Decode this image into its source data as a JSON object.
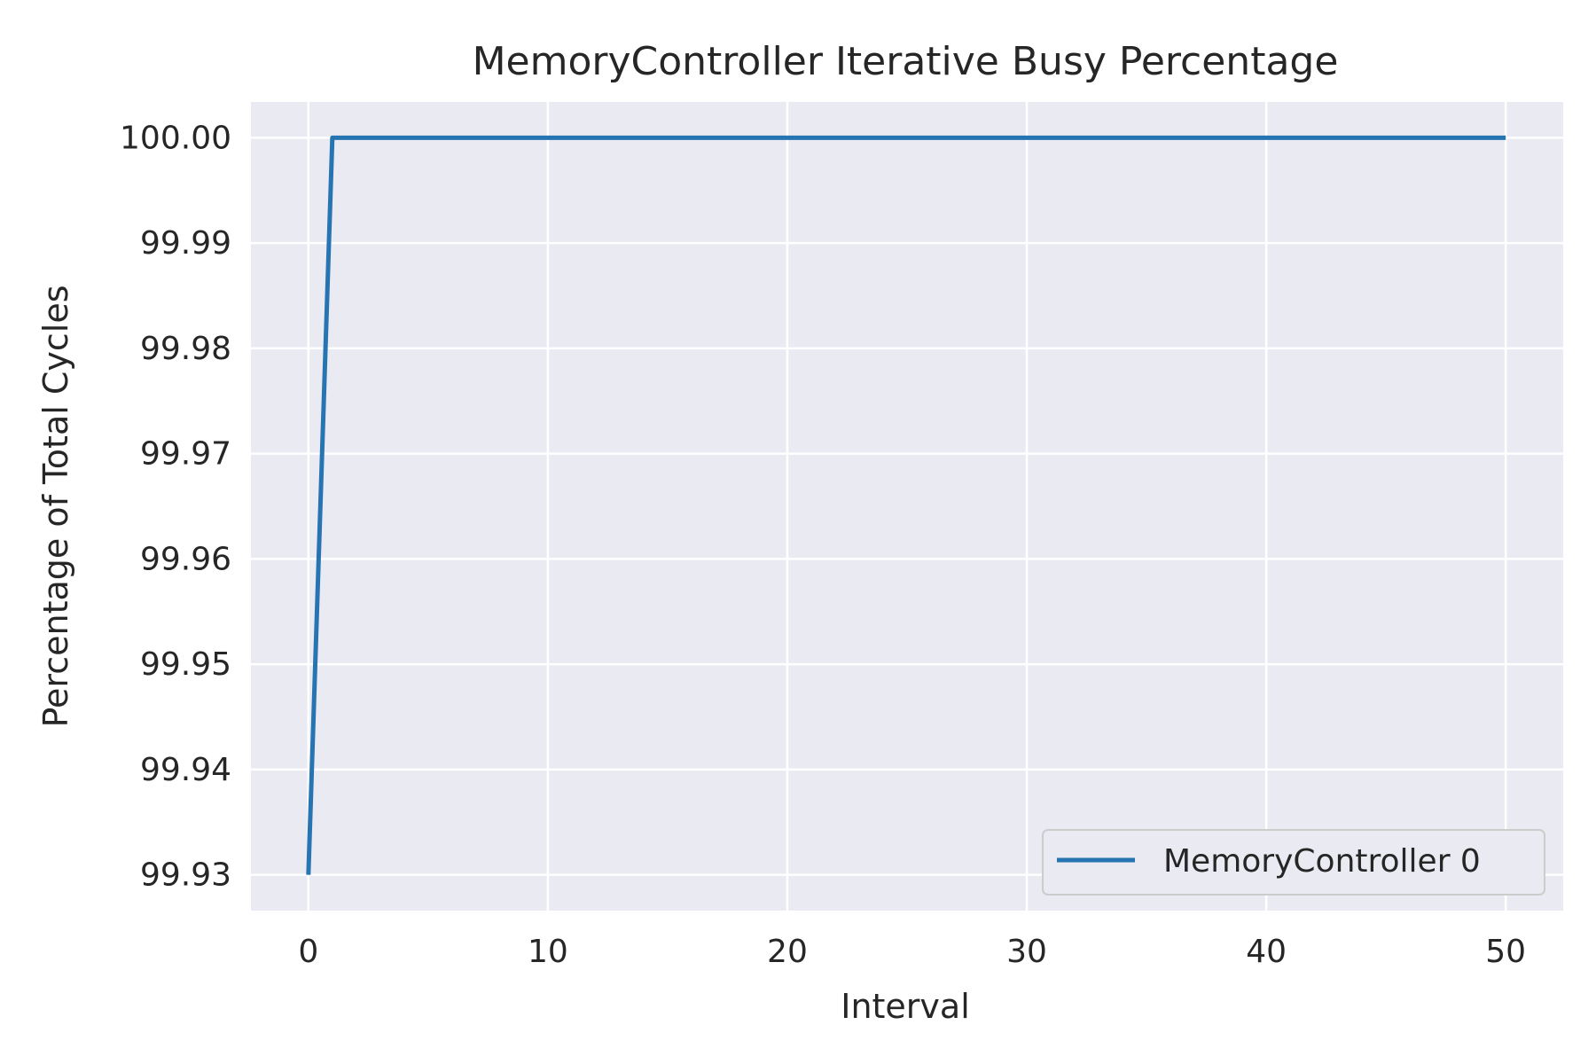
{
  "chart_data": {
    "type": "line",
    "title": "MemoryController Iterative Busy Percentage",
    "xlabel": "Interval",
    "ylabel": "Percentage of Total Cycles",
    "xlim": [
      -2.4,
      52.4
    ],
    "ylim": [
      99.9266,
      100.0034
    ],
    "x_ticks": [
      0,
      10,
      20,
      30,
      40,
      50
    ],
    "x_tick_labels": [
      "0",
      "10",
      "20",
      "30",
      "40",
      "50"
    ],
    "y_ticks": [
      99.93,
      99.94,
      99.95,
      99.96,
      99.97,
      99.98,
      99.99,
      100.0
    ],
    "y_tick_labels": [
      "99.93",
      "99.94",
      "99.95",
      "99.96",
      "99.97",
      "99.98",
      "99.99",
      "100.00"
    ],
    "grid": true,
    "legend_position": "bottom-right",
    "colors": {
      "plot_background": "#eaeaf2",
      "series_line": "#2774b2",
      "grid": "#ffffff"
    },
    "x": [
      0,
      1,
      2,
      3,
      4,
      5,
      6,
      7,
      8,
      9,
      10,
      11,
      12,
      13,
      14,
      15,
      16,
      17,
      18,
      19,
      20,
      21,
      22,
      23,
      24,
      25,
      26,
      27,
      28,
      29,
      30,
      31,
      32,
      33,
      34,
      35,
      36,
      37,
      38,
      39,
      40,
      41,
      42,
      43,
      44,
      45,
      46,
      47,
      48,
      49,
      50
    ],
    "series": [
      {
        "name": "MemoryController 0",
        "values": [
          99.93,
          100,
          100,
          100,
          100,
          100,
          100,
          100,
          100,
          100,
          100,
          100,
          100,
          100,
          100,
          100,
          100,
          100,
          100,
          100,
          100,
          100,
          100,
          100,
          100,
          100,
          100,
          100,
          100,
          100,
          100,
          100,
          100,
          100,
          100,
          100,
          100,
          100,
          100,
          100,
          100,
          100,
          100,
          100,
          100,
          100,
          100,
          100,
          100,
          100,
          100
        ]
      }
    ]
  }
}
